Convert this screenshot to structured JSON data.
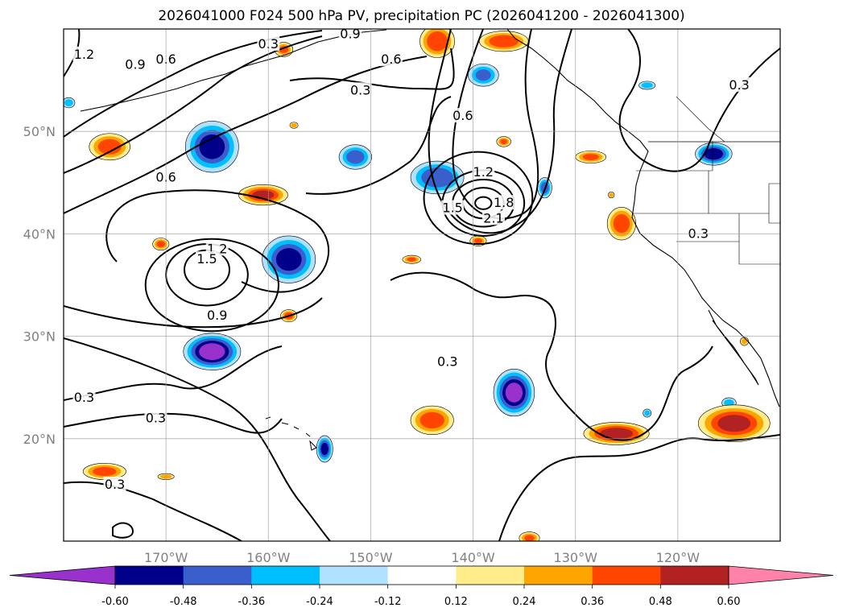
{
  "chart_data": {
    "type": "heatmap",
    "title": "2026041000 F024 500 hPa PV, precipitation PC (2026041200 - 2026041300)",
    "xlabel": "",
    "ylabel": "",
    "xlim": [
      -180,
      -110
    ],
    "ylim": [
      10,
      60
    ],
    "x_ticks": [
      {
        "value": -170,
        "label": "170°W"
      },
      {
        "value": -160,
        "label": "160°W"
      },
      {
        "value": -150,
        "label": "150°W"
      },
      {
        "value": -140,
        "label": "140°W"
      },
      {
        "value": -130,
        "label": "130°W"
      },
      {
        "value": -120,
        "label": "120°W"
      }
    ],
    "y_ticks": [
      {
        "value": 20,
        "label": "20°N"
      },
      {
        "value": 30,
        "label": "30°N"
      },
      {
        "value": 40,
        "label": "40°N"
      },
      {
        "value": 50,
        "label": "50°N"
      }
    ],
    "grid": true,
    "colorbar": {
      "position": "bottom",
      "extend": "both",
      "levels": [
        "-0.60",
        "-0.48",
        "-0.36",
        "-0.24",
        "-0.12",
        "0.12",
        "0.24",
        "0.36",
        "0.48",
        "0.60"
      ],
      "colors": [
        "#9932cc",
        "#00008b",
        "#3a5fcd",
        "#00bfff",
        "#b0e2ff",
        "#ffffff",
        "#ffec8b",
        "#ffa500",
        "#ff4500",
        "#b22222",
        "#ff82ab"
      ]
    },
    "contour_labels": [
      {
        "text": "1.2",
        "lon": -178,
        "lat": 57.5
      },
      {
        "text": "0.9",
        "lon": -173,
        "lat": 56.5
      },
      {
        "text": "0.6",
        "lon": -170,
        "lat": 57
      },
      {
        "text": "0.3",
        "lon": -160,
        "lat": 58.5
      },
      {
        "text": "0.9",
        "lon": -152,
        "lat": 59.5
      },
      {
        "text": "0.6",
        "lon": -148,
        "lat": 57
      },
      {
        "text": "0.3",
        "lon": -151,
        "lat": 54
      },
      {
        "text": "0.6",
        "lon": -141,
        "lat": 51.5
      },
      {
        "text": "1.2",
        "lon": -139,
        "lat": 46
      },
      {
        "text": "1.5",
        "lon": -142,
        "lat": 42.5
      },
      {
        "text": "2.1",
        "lon": -138,
        "lat": 41.5
      },
      {
        "text": "1.8",
        "lon": -137,
        "lat": 43
      },
      {
        "text": "0.6",
        "lon": -170,
        "lat": 45.5
      },
      {
        "text": "1.2",
        "lon": -165,
        "lat": 38.5
      },
      {
        "text": "1.5",
        "lon": -166,
        "lat": 37.5
      },
      {
        "text": "0.9",
        "lon": -165,
        "lat": 32
      },
      {
        "text": "0.3",
        "lon": -178,
        "lat": 24
      },
      {
        "text": "0.3",
        "lon": -171,
        "lat": 22
      },
      {
        "text": "0.3",
        "lon": -175,
        "lat": 15.5
      },
      {
        "text": "0.3",
        "lon": -142.5,
        "lat": 27.5
      },
      {
        "text": "0.3",
        "lon": -114,
        "lat": 54.5
      },
      {
        "text": "0.3",
        "lon": -118,
        "lat": 40
      }
    ],
    "pv_contours": [
      {
        "level": 2.1,
        "lon": -139,
        "lat": 43,
        "rlon": 0.8,
        "rlat": 0.6
      },
      {
        "level": 1.8,
        "lon": -139,
        "lat": 43,
        "rlon": 2.0,
        "rlat": 1.5
      },
      {
        "level": 1.5,
        "lon": -139,
        "lat": 43,
        "rlon": 3.0,
        "rlat": 2.3
      },
      {
        "level": 1.2,
        "lon": -139,
        "lat": 43,
        "rlon": 4.0,
        "rlat": 3.2
      },
      {
        "level": 0.9,
        "lon": -139.5,
        "lat": 43.5,
        "rlon": 5.3,
        "rlat": 4.5
      },
      {
        "level": 1.5,
        "lon": -166,
        "lat": 36.5,
        "rlon": 2.2,
        "rlat": 1.9
      },
      {
        "level": 1.2,
        "lon": -166,
        "lat": 36,
        "rlon": 4.0,
        "rlat": 3.0
      },
      {
        "level": 0.9,
        "lon": -165.5,
        "lat": 35,
        "rlon": 6.5,
        "rlat": 4.5
      }
    ],
    "precip_anomalies": [
      {
        "lon": -165.5,
        "lat": 28.5,
        "rlon": 2.8,
        "rlat": 1.8,
        "value": -0.66
      },
      {
        "lon": -136,
        "lat": 24.5,
        "rlon": 2.0,
        "rlat": 2.3,
        "value": -0.62
      },
      {
        "lon": -158,
        "lat": 37.5,
        "rlon": 2.6,
        "rlat": 2.3,
        "value": -0.52
      },
      {
        "lon": -165.5,
        "lat": 48.5,
        "rlon": 2.6,
        "rlat": 2.5,
        "value": -0.52
      },
      {
        "lon": -143.5,
        "lat": 45.5,
        "rlon": 2.6,
        "rlat": 1.6,
        "value": -0.45
      },
      {
        "lon": -116.5,
        "lat": 47.8,
        "rlon": 1.8,
        "rlat": 1.1,
        "value": -0.55
      },
      {
        "lon": -151.5,
        "lat": 47.5,
        "rlon": 1.6,
        "rlat": 1.2,
        "value": -0.4
      },
      {
        "lon": -133,
        "lat": 44.5,
        "rlon": 0.7,
        "rlat": 1.0,
        "value": -0.4
      },
      {
        "lon": -139,
        "lat": 55.5,
        "rlon": 1.5,
        "rlat": 1.1,
        "value": -0.36
      },
      {
        "lon": -154.5,
        "lat": 19.0,
        "rlon": 0.8,
        "rlat": 1.3,
        "value": -0.5
      },
      {
        "lon": -115,
        "lat": 23.5,
        "rlon": 0.7,
        "rlat": 0.5,
        "value": -0.3
      },
      {
        "lon": -123,
        "lat": 54.5,
        "rlon": 0.8,
        "rlat": 0.4,
        "value": -0.3
      },
      {
        "lon": -179.5,
        "lat": 52.8,
        "rlon": 0.6,
        "rlat": 0.5,
        "value": -0.3
      },
      {
        "lon": -123,
        "lat": 22.5,
        "rlon": 0.4,
        "rlat": 0.4,
        "value": -0.3
      },
      {
        "lon": -114.5,
        "lat": 21.5,
        "rlon": 3.5,
        "rlat": 1.8,
        "value": 0.5
      },
      {
        "lon": -126,
        "lat": 20.5,
        "rlon": 3.2,
        "rlat": 1.1,
        "value": 0.55
      },
      {
        "lon": -137.0,
        "lat": 58.8,
        "rlon": 2.4,
        "rlat": 1.0,
        "value": 0.45
      },
      {
        "lon": -143.5,
        "lat": 58.8,
        "rlon": 1.7,
        "rlat": 1.6,
        "value": 0.45
      },
      {
        "lon": -144.0,
        "lat": 21.8,
        "rlon": 2.1,
        "rlat": 1.4,
        "value": 0.42
      },
      {
        "lon": -160.5,
        "lat": 43.8,
        "rlon": 2.4,
        "rlat": 1.0,
        "value": 0.48
      },
      {
        "lon": -175.5,
        "lat": 48.5,
        "rlon": 2.0,
        "rlat": 1.3,
        "value": 0.42
      },
      {
        "lon": -125.5,
        "lat": 41.0,
        "rlon": 1.4,
        "rlat": 1.6,
        "value": 0.42
      },
      {
        "lon": -128.5,
        "lat": 47.5,
        "rlon": 1.5,
        "rlat": 0.6,
        "value": 0.38
      },
      {
        "lon": -176,
        "lat": 16.8,
        "rlon": 2.1,
        "rlat": 0.8,
        "value": 0.4
      },
      {
        "lon": -170.5,
        "lat": 39.0,
        "rlon": 0.8,
        "rlat": 0.6,
        "value": 0.38
      },
      {
        "lon": -158.0,
        "lat": 32.0,
        "rlon": 0.8,
        "rlat": 0.6,
        "value": 0.4
      },
      {
        "lon": -139.5,
        "lat": 39.3,
        "rlon": 0.8,
        "rlat": 0.5,
        "value": 0.36
      },
      {
        "lon": -146.0,
        "lat": 37.5,
        "rlon": 0.9,
        "rlat": 0.4,
        "value": 0.36
      },
      {
        "lon": -137,
        "lat": 49.0,
        "rlon": 0.7,
        "rlat": 0.5,
        "value": 0.36
      },
      {
        "lon": -158.5,
        "lat": 58.0,
        "rlon": 0.9,
        "rlat": 0.7,
        "value": 0.36
      },
      {
        "lon": -113.5,
        "lat": 29.5,
        "rlon": 0.4,
        "rlat": 0.4,
        "value": 0.3
      },
      {
        "lon": -134.5,
        "lat": 10.3,
        "rlon": 1.0,
        "rlat": 0.6,
        "value": 0.36
      },
      {
        "lon": -170,
        "lat": 16.3,
        "rlon": 0.8,
        "rlat": 0.3,
        "value": 0.3
      },
      {
        "lon": -157.5,
        "lat": 50.6,
        "rlon": 0.4,
        "rlat": 0.3,
        "value": 0.3
      },
      {
        "lon": -126.5,
        "lat": 43.8,
        "rlon": 0.3,
        "rlat": 0.3,
        "value": 0.3
      }
    ]
  }
}
